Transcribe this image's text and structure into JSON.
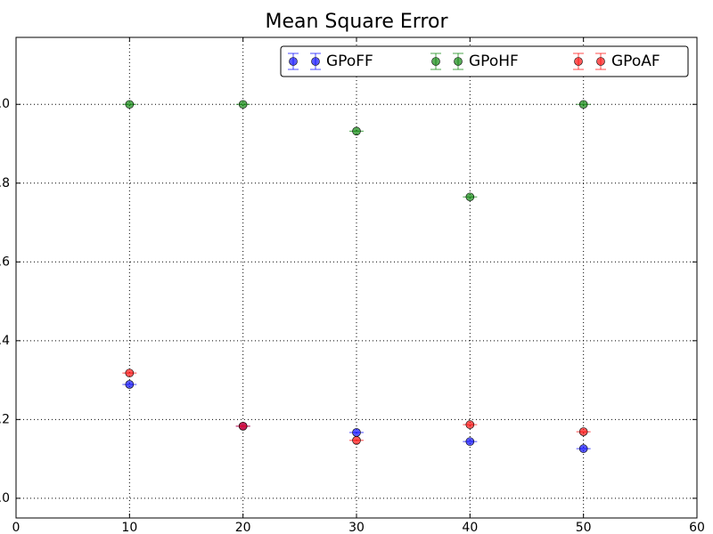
{
  "chart_data": {
    "type": "scatter",
    "title": "Mean Square Error",
    "x": [
      10,
      20,
      30,
      40,
      50
    ],
    "series": [
      {
        "name": "GPoFF",
        "color": "#0000ff",
        "values": [
          0.289,
          0.183,
          0.167,
          0.144,
          0.126
        ]
      },
      {
        "name": "GPoHF",
        "color": "#008000",
        "values": [
          1.0,
          1.0,
          0.932,
          0.765,
          1.0
        ]
      },
      {
        "name": "GPoAF",
        "color": "#ff0000",
        "values": [
          0.318,
          0.183,
          0.147,
          0.187,
          0.169
        ]
      }
    ],
    "xlim": [
      0,
      60
    ],
    "xticks": [
      0,
      10,
      20,
      30,
      40,
      50,
      60
    ],
    "ylim": [
      -0.05,
      1.17
    ],
    "yticks": [
      {
        "value": 0,
        "label": "0.0"
      },
      0.2,
      0.4,
      0.6,
      0.8,
      {
        "value": 1,
        "label": "1.0"
      }
    ],
    "grid": true,
    "legend": "upper right"
  }
}
